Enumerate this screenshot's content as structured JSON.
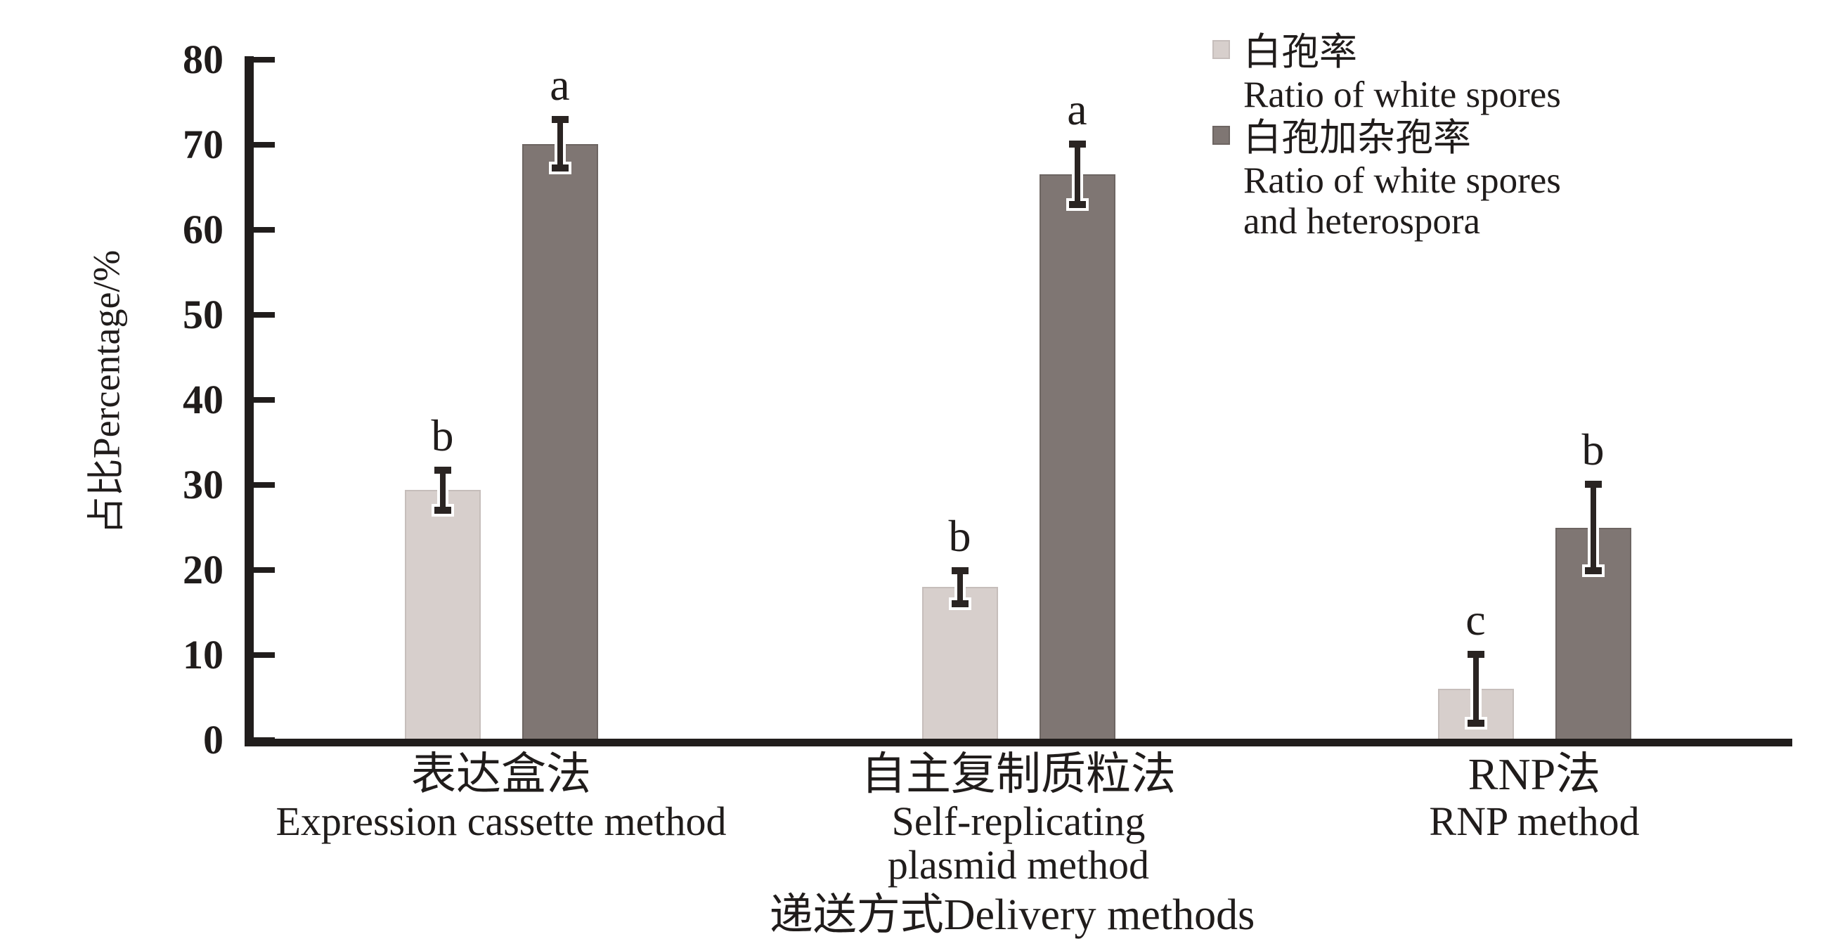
{
  "figure": {
    "background": "#ffffff",
    "text_color": "#201c1b",
    "axis_color": "#211d1c"
  },
  "chart_data": {
    "type": "bar",
    "title": "",
    "xlabel": "递送方式Delivery methods",
    "ylabel": "占比Percentage/%",
    "ylim": [
      0,
      80
    ],
    "yticks": [
      0,
      10,
      20,
      30,
      40,
      50,
      60,
      70,
      80
    ],
    "grid": false,
    "legend_position": "top-right",
    "error_bars": true,
    "categories": [
      {
        "zh": "表达盒法",
        "en_lines": [
          "Expression cassette method"
        ]
      },
      {
        "zh": "自主复制质粒法",
        "en_lines": [
          "Self-replicating",
          "plasmid method"
        ]
      },
      {
        "zh": "RNP法",
        "en_lines": [
          "RNP method"
        ]
      }
    ],
    "series": [
      {
        "name_zh": "白孢率",
        "name_en_lines": [
          "Ratio of white spores"
        ],
        "color": "#d7cfcc",
        "border_color": "#c6bebb",
        "values": [
          29.4,
          18.0,
          6.0
        ],
        "errors": [
          2.6,
          2.2,
          4.3
        ],
        "letters": [
          "b",
          "b",
          "c"
        ]
      },
      {
        "name_zh": "白孢加杂孢率",
        "name_en_lines": [
          "Ratio of white spores",
          "and heterospora"
        ],
        "color": "#7f7673",
        "border_color": "#6d6562",
        "values": [
          70.1,
          66.5,
          25.0
        ],
        "errors": [
          3.1,
          3.8,
          5.3
        ],
        "letters": [
          "a",
          "a",
          "b"
        ]
      }
    ]
  }
}
